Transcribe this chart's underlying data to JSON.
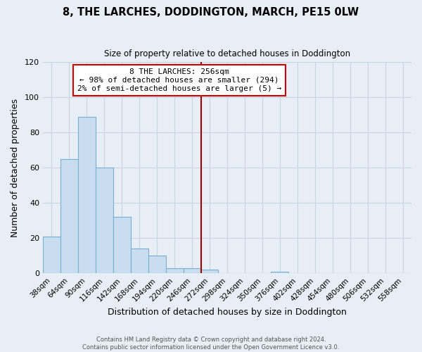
{
  "title": "8, THE LARCHES, DODDINGTON, MARCH, PE15 0LW",
  "subtitle": "Size of property relative to detached houses in Doddington",
  "xlabel": "Distribution of detached houses by size in Doddington",
  "ylabel": "Number of detached properties",
  "bin_labels": [
    "38sqm",
    "64sqm",
    "90sqm",
    "116sqm",
    "142sqm",
    "168sqm",
    "194sqm",
    "220sqm",
    "246sqm",
    "272sqm",
    "298sqm",
    "324sqm",
    "350sqm",
    "376sqm",
    "402sqm",
    "428sqm",
    "454sqm",
    "480sqm",
    "506sqm",
    "532sqm",
    "558sqm"
  ],
  "bin_values": [
    21,
    65,
    89,
    60,
    32,
    14,
    10,
    3,
    3,
    2,
    0,
    0,
    0,
    1,
    0,
    0,
    0,
    0,
    0,
    0,
    0
  ],
  "bar_color": "#c8ddef",
  "bar_edge_color": "#7aafd4",
  "bar_width": 1.0,
  "ylim": [
    0,
    120
  ],
  "yticks": [
    0,
    20,
    40,
    60,
    80,
    100,
    120
  ],
  "property_line_bin": 8,
  "property_line_color": "#990000",
  "annotation_title": "8 THE LARCHES: 256sqm",
  "annotation_line1": "← 98% of detached houses are smaller (294)",
  "annotation_line2": "2% of semi-detached houses are larger (5) →",
  "annotation_box_color": "#cc0000",
  "footer_line1": "Contains HM Land Registry data © Crown copyright and database right 2024.",
  "footer_line2": "Contains public sector information licensed under the Open Government Licence v3.0.",
  "background_color": "#e8eef5",
  "grid_color": "#c8d4e0"
}
